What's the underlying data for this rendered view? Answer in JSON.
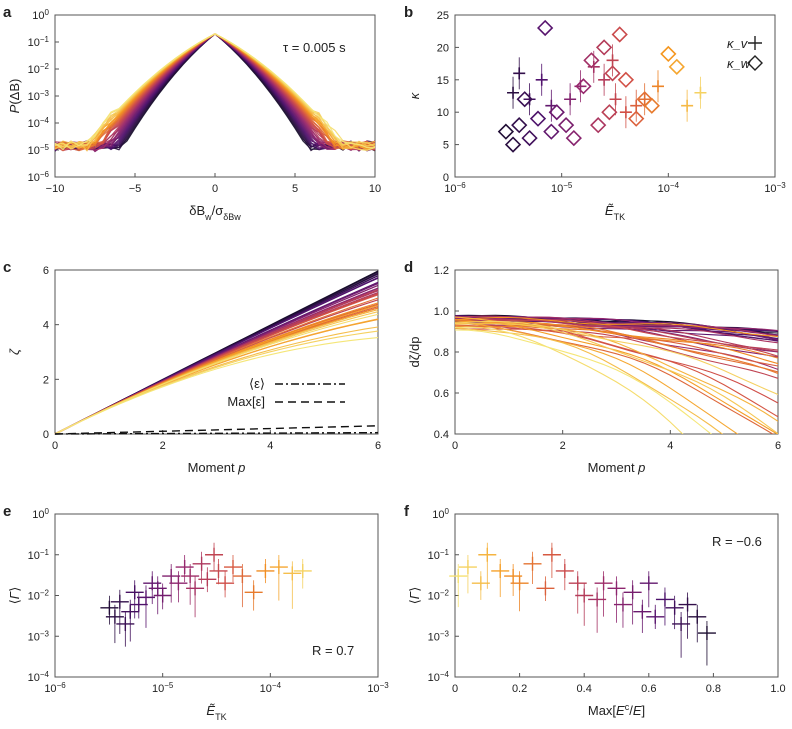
{
  "chart_data": [
    {
      "panel": "a",
      "type": "line",
      "xlabel": "δB_w/σ_δBw",
      "ylabel": "P(ΔB)",
      "xlim": [
        -10,
        10
      ],
      "ylim_log10": [
        -6,
        0
      ],
      "xticks": [
        "-10",
        "-5",
        "0",
        "5",
        "10"
      ],
      "yticks": [
        "10^-6",
        "10^-5",
        "10^-4",
        "10^-3",
        "10^-2",
        "10^-1",
        "10^0"
      ],
      "annotation": "τ = 0.005 s",
      "description_curves": "many PDFs, peak ~0.2 at 0, tails ~1e-5 at |x|≈10",
      "n_curves": 40
    },
    {
      "panel": "b",
      "type": "scatter",
      "xlabel": "Ẽ_TK",
      "ylabel": "κ",
      "xlim_log10": [
        -6,
        -3
      ],
      "ylim": [
        0,
        25
      ],
      "xticks": [
        "10^-6",
        "10^-5",
        "10^-4",
        "10^-3"
      ],
      "yticks": [
        "0",
        "5",
        "10",
        "15",
        "20",
        "25"
      ],
      "legend": [
        {
          "label": "κ_v",
          "marker": "+"
        },
        {
          "label": "κ_w",
          "marker": "◇"
        }
      ],
      "legend_position": "top-right",
      "series": [
        {
          "name": "κ_v",
          "x": [
            3.5e-06,
            4e-06,
            5e-06,
            6.5e-06,
            8e-06,
            1.2e-05,
            1.5e-05,
            2e-05,
            2.5e-05,
            3e-05,
            3.2e-05,
            4e-05,
            5e-05,
            6e-05,
            8e-05,
            0.00015,
            0.0002
          ],
          "y": [
            13,
            16,
            12,
            15,
            11,
            12,
            14,
            17,
            15,
            18,
            12,
            10,
            11,
            12,
            14,
            11,
            13
          ]
        },
        {
          "name": "κ_w",
          "x": [
            3e-06,
            3.5e-06,
            4e-06,
            4.5e-06,
            5e-06,
            6e-06,
            7e-06,
            8e-06,
            9e-06,
            1.1e-05,
            1.3e-05,
            1.6e-05,
            1.9e-05,
            2.2e-05,
            2.5e-05,
            2.8e-05,
            3e-05,
            3.5e-05,
            4e-05,
            5e-05,
            6e-05,
            7e-05,
            0.0001,
            0.00012
          ],
          "y": [
            7,
            5,
            8,
            12,
            6,
            9,
            23,
            7,
            10,
            8,
            6,
            14,
            18,
            8,
            20,
            10,
            16,
            22,
            15,
            9,
            12,
            11,
            19,
            17
          ]
        }
      ]
    },
    {
      "panel": "c",
      "type": "line",
      "xlabel": "Moment p",
      "ylabel": "ζ",
      "xlim": [
        0,
        6
      ],
      "ylim": [
        0,
        6
      ],
      "xticks": [
        "0",
        "2",
        "4",
        "6"
      ],
      "yticks": [
        "0",
        "2",
        "4",
        "6"
      ],
      "legend": [
        {
          "label": "⟨ε⟩",
          "style": "dash-dot"
        },
        {
          "label": "Max[ε]",
          "style": "dashed"
        }
      ],
      "ref_lines": [
        {
          "name": "⟨ε⟩",
          "x": [
            0,
            6
          ],
          "y": [
            0,
            0.05
          ]
        },
        {
          "name": "Max[ε]",
          "x": [
            0,
            6
          ],
          "y": [
            0,
            0.3
          ]
        }
      ],
      "n_curves": 40,
      "zeta_at_p6_range": [
        3.5,
        5.95
      ]
    },
    {
      "panel": "d",
      "type": "line",
      "xlabel": "Moment p",
      "ylabel": "dζ/dp",
      "xlim": [
        0,
        6
      ],
      "ylim": [
        0.4,
        1.2
      ],
      "xticks": [
        "0",
        "2",
        "4",
        "6"
      ],
      "yticks": [
        "0.4",
        "0.6",
        "0.8",
        "1.0",
        "1.2"
      ],
      "n_curves": 40
    },
    {
      "panel": "e",
      "type": "scatter",
      "xlabel": "Ẽ_TK",
      "ylabel": "⟨Γ⟩",
      "xlim_log10": [
        -6,
        -3
      ],
      "ylim_log10": [
        -4,
        0
      ],
      "xticks": [
        "10^-6",
        "10^-5",
        "10^-4",
        "10^-3"
      ],
      "yticks": [
        "10^-4",
        "10^-3",
        "10^-2",
        "10^-1",
        "10^0"
      ],
      "annotation": "R = 0.7",
      "x": [
        3.2e-06,
        3.6e-06,
        4e-06,
        4.5e-06,
        5e-06,
        5.5e-06,
        6e-06,
        7e-06,
        8e-06,
        9e-06,
        1e-05,
        1.2e-05,
        1.4e-05,
        1.6e-05,
        1.8e-05,
        2e-05,
        2.3e-05,
        2.6e-05,
        3e-05,
        3.3e-05,
        3.8e-05,
        4.5e-05,
        5.5e-05,
        7e-05,
        9e-05,
        0.00012,
        0.00016,
        0.0002
      ],
      "y": [
        0.005,
        0.003,
        0.007,
        0.002,
        0.004,
        0.012,
        0.006,
        0.009,
        0.02,
        0.015,
        0.01,
        0.03,
        0.02,
        0.05,
        0.03,
        0.015,
        0.06,
        0.025,
        0.1,
        0.04,
        0.02,
        0.05,
        0.03,
        0.012,
        0.04,
        0.05,
        0.035,
        0.04
      ]
    },
    {
      "panel": "f",
      "type": "scatter",
      "xlabel": "Max[E^c/E]",
      "ylabel": "⟨Γ⟩",
      "xlim": [
        0,
        1.0
      ],
      "ylim_log10": [
        -4,
        0
      ],
      "xticks": [
        "0",
        "0.2",
        "0.4",
        "0.6",
        "0.8",
        "1.0"
      ],
      "yticks": [
        "10^-4",
        "10^-3",
        "10^-2",
        "10^-1",
        "10^0"
      ],
      "annotation": "R = −0.6",
      "x": [
        0.01,
        0.04,
        0.08,
        0.1,
        0.14,
        0.18,
        0.2,
        0.24,
        0.28,
        0.3,
        0.34,
        0.38,
        0.4,
        0.44,
        0.46,
        0.5,
        0.52,
        0.55,
        0.58,
        0.6,
        0.62,
        0.65,
        0.68,
        0.7,
        0.72,
        0.75,
        0.78
      ],
      "y": [
        0.03,
        0.05,
        0.02,
        0.1,
        0.04,
        0.03,
        0.02,
        0.06,
        0.015,
        0.1,
        0.04,
        0.02,
        0.01,
        0.008,
        0.02,
        0.015,
        0.006,
        0.012,
        0.004,
        0.02,
        0.003,
        0.008,
        0.005,
        0.002,
        0.006,
        0.003,
        0.0012
      ]
    }
  ]
}
